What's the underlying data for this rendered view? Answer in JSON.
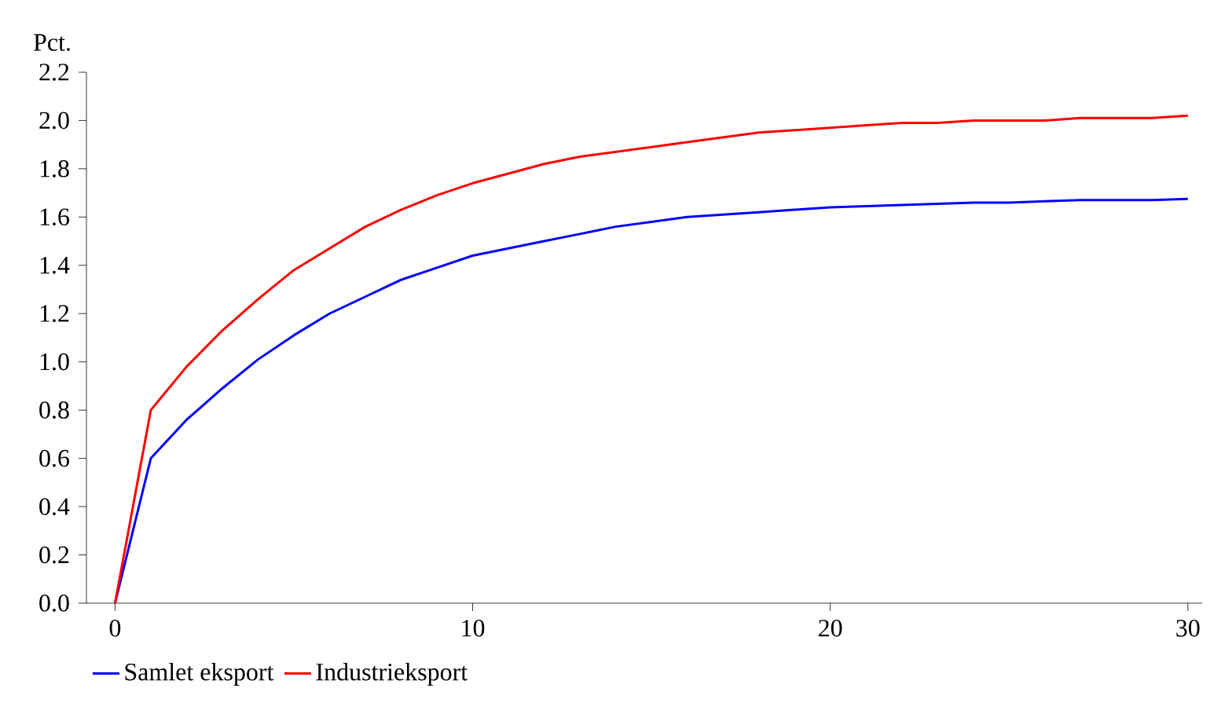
{
  "chart_data": {
    "type": "line",
    "ylabel": "Pct.",
    "x": [
      0,
      1,
      2,
      3,
      4,
      5,
      6,
      7,
      8,
      9,
      10,
      11,
      12,
      13,
      14,
      15,
      16,
      17,
      18,
      19,
      20,
      21,
      22,
      23,
      24,
      25,
      26,
      27,
      28,
      29,
      30
    ],
    "series": [
      {
        "name": "Samlet eksport",
        "color": "#0000ff",
        "values": [
          0,
          0.6,
          0.76,
          0.89,
          1.01,
          1.11,
          1.2,
          1.27,
          1.34,
          1.39,
          1.44,
          1.47,
          1.5,
          1.53,
          1.56,
          1.58,
          1.6,
          1.61,
          1.62,
          1.63,
          1.64,
          1.645,
          1.65,
          1.655,
          1.66,
          1.66,
          1.665,
          1.67,
          1.67,
          1.67,
          1.675
        ]
      },
      {
        "name": "Industrieksport",
        "color": "#ff0000",
        "values": [
          0,
          0.8,
          0.98,
          1.13,
          1.26,
          1.38,
          1.47,
          1.56,
          1.63,
          1.69,
          1.74,
          1.78,
          1.82,
          1.85,
          1.87,
          1.89,
          1.91,
          1.93,
          1.95,
          1.96,
          1.97,
          1.98,
          1.99,
          1.99,
          2.0,
          2.0,
          2.0,
          2.01,
          2.01,
          2.01,
          2.02
        ]
      }
    ],
    "xlim": [
      -0.8,
      30.4
    ],
    "xticks": [
      0,
      10,
      20,
      30
    ],
    "ylim": [
      0,
      2.2
    ],
    "yticks": [
      {
        "value": 0,
        "label": "0.0"
      },
      {
        "value": 0.2,
        "label": "0.2"
      },
      {
        "value": 0.4,
        "label": "0.4"
      },
      {
        "value": 0.6,
        "label": "0.6"
      },
      {
        "value": 0.8,
        "label": "0.8"
      },
      {
        "value": 1.0,
        "label": "1.0"
      },
      {
        "value": 1.2,
        "label": "1.2"
      },
      {
        "value": 1.4,
        "label": "1.4"
      },
      {
        "value": 1.6,
        "label": "1.6"
      },
      {
        "value": 1.8,
        "label": "1.8"
      },
      {
        "value": 2.0,
        "label": "2.0"
      },
      {
        "value": 2.2,
        "label": "2.2"
      }
    ],
    "grid": false,
    "legend": "bottom",
    "marker": "none",
    "line_style": "solid"
  }
}
